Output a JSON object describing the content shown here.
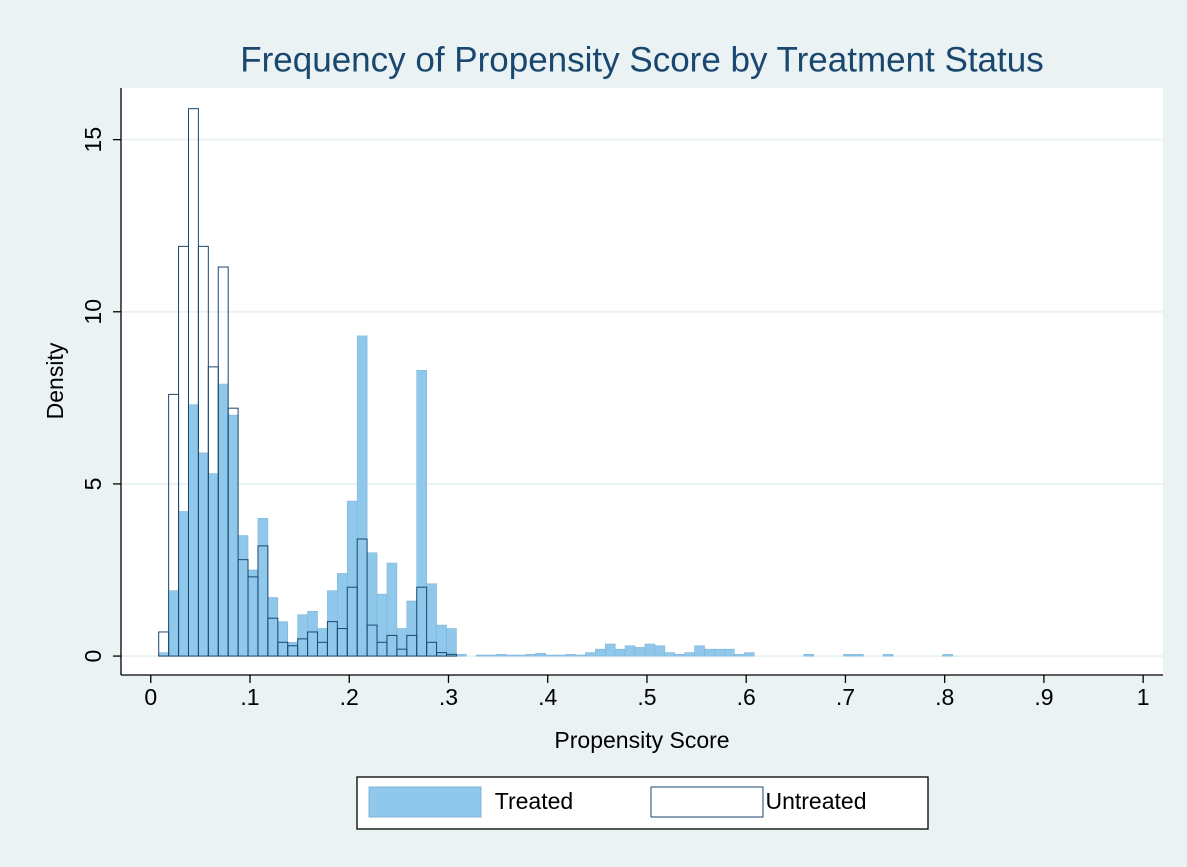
{
  "chart_data": {
    "type": "histogram",
    "title": "Frequency of Propensity Score by Treatment Status",
    "x_label": "Propensity Score",
    "y_label": "Density",
    "bins": [
      0.008,
      0.018,
      0.028,
      0.038,
      0.048,
      0.058,
      0.068,
      0.078,
      0.088,
      0.098,
      0.108,
      0.118,
      0.128,
      0.138,
      0.148,
      0.158,
      0.168,
      0.178,
      0.188,
      0.198,
      0.208,
      0.218,
      0.228,
      0.238,
      0.248,
      0.258,
      0.268,
      0.278,
      0.288,
      0.298,
      0.308,
      0.318,
      0.328,
      0.338,
      0.348,
      0.358,
      0.368,
      0.378,
      0.388,
      0.398,
      0.408,
      0.418,
      0.428,
      0.438,
      0.448,
      0.458,
      0.468,
      0.478,
      0.488,
      0.498,
      0.508,
      0.518,
      0.528,
      0.538,
      0.548,
      0.558,
      0.568,
      0.578,
      0.588,
      0.598,
      0.608,
      0.618,
      0.628,
      0.638,
      0.648,
      0.658,
      0.668,
      0.678,
      0.688,
      0.698,
      0.708,
      0.718,
      0.728,
      0.738,
      0.748,
      0.758,
      0.768,
      0.778,
      0.788,
      0.798,
      0.808
    ],
    "series": [
      {
        "name": "Treated",
        "color": "#8fc8ea",
        "filled": true,
        "values": [
          0.1,
          1.9,
          4.2,
          7.3,
          5.9,
          5.3,
          7.9,
          7.0,
          3.5,
          2.5,
          4.0,
          1.7,
          1.0,
          0.4,
          1.2,
          1.3,
          0.8,
          1.9,
          2.4,
          4.5,
          9.3,
          3.0,
          1.8,
          2.7,
          0.8,
          1.6,
          8.3,
          2.1,
          0.9,
          0.8,
          0.05,
          0,
          0.03,
          0.03,
          0.05,
          0.03,
          0.03,
          0.05,
          0.08,
          0.03,
          0.03,
          0.05,
          0.03,
          0.1,
          0.2,
          0.35,
          0.2,
          0.3,
          0.25,
          0.35,
          0.3,
          0.1,
          0.05,
          0.1,
          0.3,
          0.2,
          0.2,
          0.2,
          0.05,
          0.1,
          0,
          0,
          0,
          0,
          0,
          0.05,
          0,
          0,
          0,
          0.05,
          0.05,
          0,
          0,
          0.05,
          0,
          0,
          0,
          0,
          0,
          0.05
        ]
      },
      {
        "name": "Untreated",
        "color": "#1a476f",
        "filled": false,
        "values": [
          0.7,
          7.6,
          11.9,
          15.9,
          11.9,
          8.4,
          11.3,
          7.2,
          2.8,
          2.3,
          3.2,
          1.1,
          0.4,
          0.3,
          0.5,
          0.7,
          0.4,
          1.0,
          0.8,
          2.0,
          3.4,
          0.9,
          0.4,
          0.6,
          0.2,
          0.6,
          2.0,
          0.4,
          0.1,
          0.05,
          0,
          0,
          0,
          0,
          0,
          0,
          0,
          0,
          0,
          0,
          0,
          0,
          0,
          0,
          0,
          0,
          0,
          0,
          0,
          0,
          0,
          0,
          0,
          0,
          0,
          0,
          0,
          0,
          0,
          0,
          0,
          0,
          0,
          0,
          0,
          0,
          0,
          0,
          0,
          0,
          0,
          0,
          0,
          0,
          0,
          0,
          0,
          0,
          0,
          0
        ]
      }
    ],
    "xlim": [
      -0.03,
      1.02
    ],
    "ylim": [
      -0.55,
      16.5
    ],
    "xticks": [
      0,
      {
        "value": 0.1,
        "label": ".1"
      },
      {
        "value": 0.2,
        "label": ".2"
      },
      {
        "value": 0.3,
        "label": ".3"
      },
      {
        "value": 0.4,
        "label": ".4"
      },
      {
        "value": 0.5,
        "label": ".5"
      },
      {
        "value": 0.6,
        "label": ".6"
      },
      {
        "value": 0.7,
        "label": ".7"
      },
      {
        "value": 0.8,
        "label": ".8"
      },
      {
        "value": 0.9,
        "label": ".9"
      },
      1
    ],
    "yticks": [
      0,
      5,
      10,
      15
    ],
    "grid": true,
    "legend": "bottom"
  }
}
